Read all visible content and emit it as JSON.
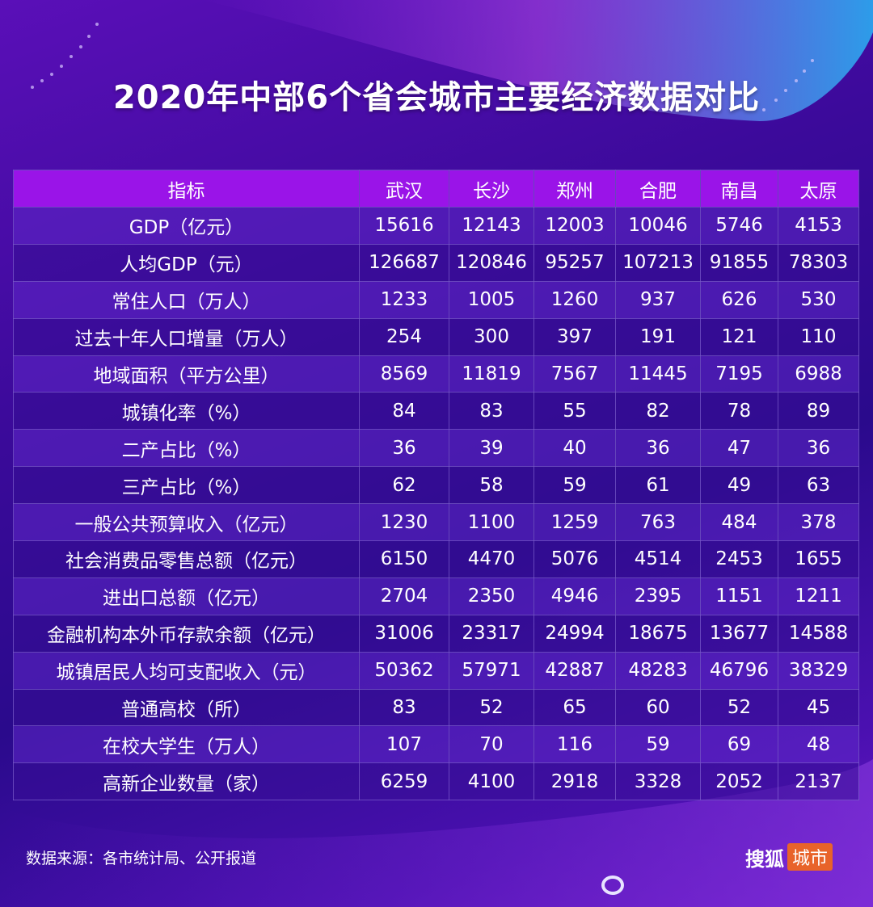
{
  "title": "2020年中部6个省会城市主要经济数据对比",
  "colors": {
    "header_bg": "#9a14e8",
    "accent_logo": "#e8632a"
  },
  "table": {
    "headers": [
      "指标",
      "武汉",
      "长沙",
      "郑州",
      "合肥",
      "南昌",
      "太原"
    ],
    "rows": [
      [
        "GDP（亿元）",
        "15616",
        "12143",
        "12003",
        "10046",
        "5746",
        "4153"
      ],
      [
        "人均GDP（元）",
        "126687",
        "120846",
        "95257",
        "107213",
        "91855",
        "78303"
      ],
      [
        "常住人口（万人）",
        "1233",
        "1005",
        "1260",
        "937",
        "626",
        "530"
      ],
      [
        "过去十年人口增量（万人）",
        "254",
        "300",
        "397",
        "191",
        "121",
        "110"
      ],
      [
        "地域面积（平方公里）",
        "8569",
        "11819",
        "7567",
        "11445",
        "7195",
        "6988"
      ],
      [
        "城镇化率（%）",
        "84",
        "83",
        "55",
        "82",
        "78",
        "89"
      ],
      [
        "二产占比（%）",
        "36",
        "39",
        "40",
        "36",
        "47",
        "36"
      ],
      [
        "三产占比（%）",
        "62",
        "58",
        "59",
        "61",
        "49",
        "63"
      ],
      [
        "一般公共预算收入（亿元）",
        "1230",
        "1100",
        "1259",
        "763",
        "484",
        "378"
      ],
      [
        "社会消费品零售总额（亿元）",
        "6150",
        "4470",
        "5076",
        "4514",
        "2453",
        "1655"
      ],
      [
        "进出口总额（亿元）",
        "2704",
        "2350",
        "4946",
        "2395",
        "1151",
        "1211"
      ],
      [
        "金融机构本外币存款余额（亿元）",
        "31006",
        "23317",
        "24994",
        "18675",
        "13677",
        "14588"
      ],
      [
        "城镇居民人均可支配收入（元）",
        "50362",
        "57971",
        "42887",
        "48283",
        "46796",
        "38329"
      ],
      [
        "普通高校（所）",
        "83",
        "52",
        "65",
        "60",
        "52",
        "45"
      ],
      [
        "在校大学生（万人）",
        "107",
        "70",
        "116",
        "59",
        "69",
        "48"
      ],
      [
        "高新企业数量（家）",
        "6259",
        "4100",
        "2918",
        "3328",
        "2052",
        "2137"
      ]
    ]
  },
  "footer": {
    "source": "数据来源：各市统计局、公开报道",
    "logo_main": "搜狐",
    "logo_tag": "城市"
  }
}
